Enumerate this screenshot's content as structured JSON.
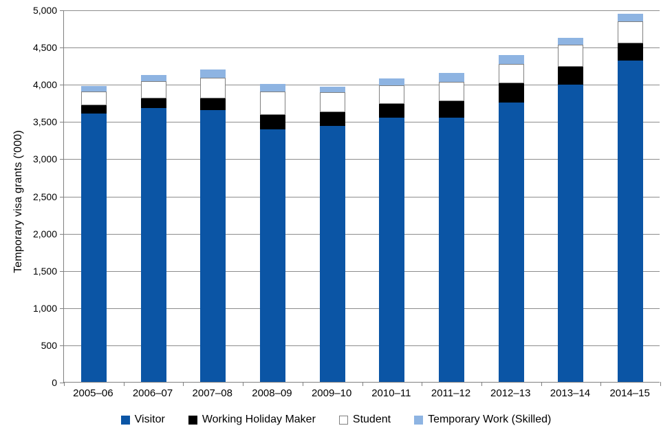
{
  "chart_data": {
    "type": "bar",
    "stacked": true,
    "title": "",
    "xlabel": "",
    "ylabel": "Temporary visa grants ('000)",
    "ylim": [
      0,
      5000
    ],
    "y_tick_interval": 500,
    "y_ticks": [
      "5,000",
      "4,500",
      "4,000",
      "3,500",
      "3,000",
      "2,500",
      "2,000",
      "1,500",
      "1,000",
      "500",
      "0"
    ],
    "grid": true,
    "legend_position": "bottom",
    "categories": [
      "2005–06",
      "2006–07",
      "2007–08",
      "2008–09",
      "2009–10",
      "2010–11",
      "2011–12",
      "2012–13",
      "2013–14",
      "2014–15"
    ],
    "series": [
      {
        "name": "Visitor",
        "color": "#0B55A5",
        "values": [
          3600,
          3675,
          3650,
          3390,
          3440,
          3545,
          3550,
          3750,
          3995,
          4320
        ]
      },
      {
        "name": "Working Holiday Maker",
        "color": "#000000",
        "values": [
          115,
          135,
          154,
          194,
          183,
          193,
          223,
          258,
          240,
          227
        ]
      },
      {
        "name": "Student",
        "color": "#FFFFFF",
        "border_color": "#7F7F7F",
        "values": [
          190,
          230,
          278,
          320,
          270,
          250,
          253,
          260,
          292,
          300
        ]
      },
      {
        "name": "Temporary Work (Skilled)",
        "color": "#8EB4E2",
        "values": [
          70,
          87,
          111,
          101,
          68,
          90,
          125,
          126,
          99,
          96
        ]
      }
    ],
    "colors": {
      "axis": "#7F7F7F",
      "gridline": "#8C8C8C",
      "text": "#000000"
    }
  }
}
